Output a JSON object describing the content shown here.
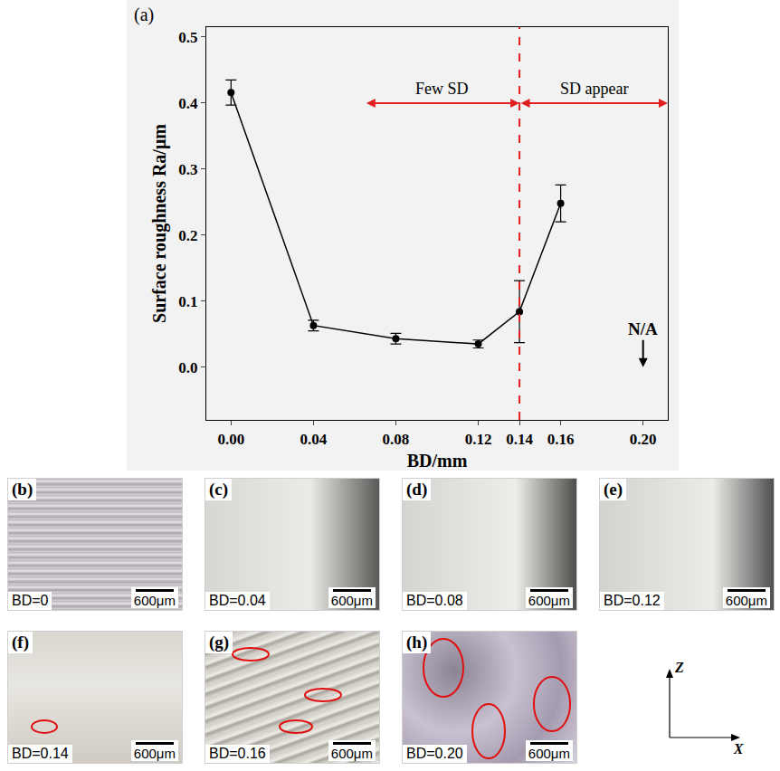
{
  "chart_data": {
    "type": "line",
    "panel": "(a)",
    "x": [
      0,
      0.04,
      0.08,
      0.12,
      0.14,
      0.16
    ],
    "values": [
      0.416,
      0.063,
      0.043,
      0.035,
      0.084,
      0.248
    ],
    "error": [
      0.019,
      0.008,
      0.008,
      0.006,
      0.047,
      0.028
    ],
    "color": "#000000",
    "marker": "circle",
    "line_style": "solid",
    "xlabel": "BD/mm",
    "ylabel": "Surface roughness Ra/μm",
    "xlim": [
      -0.012,
      0.212
    ],
    "xticks": [
      {
        "value": 0,
        "label": "0.00"
      },
      0.04,
      0.08,
      0.12,
      0.14,
      0.16,
      {
        "value": 0.2,
        "label": "0.20"
      }
    ],
    "ylim": [
      -0.08,
      0.515
    ],
    "yticks": [
      {
        "value": 0,
        "label": "0.0"
      },
      0.1,
      0.2,
      0.3,
      0.4,
      0.5
    ],
    "grid": false,
    "threshold": {
      "x": 0.14,
      "color": "#e02020"
    },
    "regions": [
      {
        "text": "Few SD",
        "from": 0.065,
        "to": 0.14,
        "y": 0.4
      },
      {
        "text": "SD appear",
        "from": 0.14,
        "to": 0.212,
        "y": 0.4
      }
    ],
    "missing": {
      "text": "N/A",
      "x": 0.2,
      "y": 0
    }
  },
  "micrographs": [
    {
      "panel": "(b)",
      "label": "BD=0",
      "scale_bar": "600μm"
    },
    {
      "panel": "(c)",
      "label": "BD=0.04",
      "scale_bar": "600μm"
    },
    {
      "panel": "(d)",
      "label": "BD=0.08",
      "scale_bar": "600μm"
    },
    {
      "panel": "(e)",
      "label": "BD=0.12",
      "scale_bar": "600μm"
    },
    {
      "panel": "(f)",
      "label": "BD=0.14",
      "scale_bar": "600μm"
    },
    {
      "panel": "(g)",
      "label": "BD=0.16",
      "scale_bar": "600μm"
    },
    {
      "panel": "(h)",
      "label": "BD=0.20",
      "scale_bar": "600μm"
    }
  ],
  "axes_indicator": {
    "vertical": "Z",
    "horizontal": "X"
  }
}
